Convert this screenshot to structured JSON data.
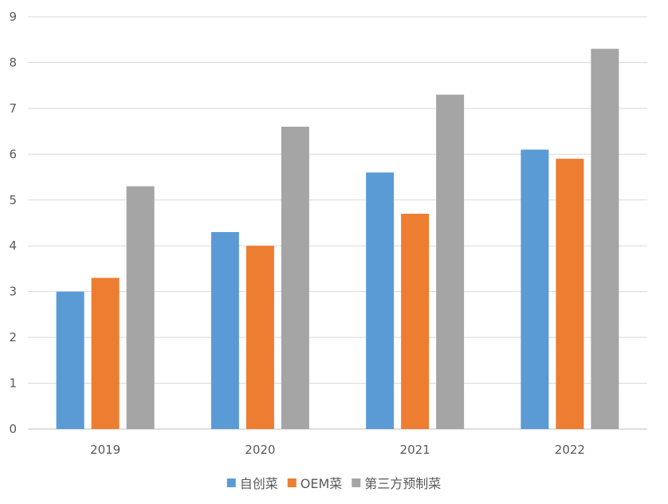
{
  "chart_data": {
    "type": "bar",
    "categories": [
      "2019",
      "2020",
      "2021",
      "2022"
    ],
    "series": [
      {
        "name": "自创菜",
        "color": "#5b9bd5",
        "values": [
          3.0,
          4.3,
          5.6,
          6.1
        ]
      },
      {
        "name": "OEM菜",
        "color": "#ed7d31",
        "values": [
          3.3,
          4.0,
          4.7,
          5.9
        ]
      },
      {
        "name": "第三方预制菜",
        "color": "#a5a5a5",
        "values": [
          5.3,
          6.6,
          7.3,
          8.3
        ]
      }
    ],
    "ylim": [
      0,
      9
    ],
    "yticks": [
      "0",
      "1",
      "2",
      "3",
      "4",
      "5",
      "6",
      "7",
      "8",
      "9"
    ],
    "grid": true,
    "legend_position": "bottom"
  }
}
